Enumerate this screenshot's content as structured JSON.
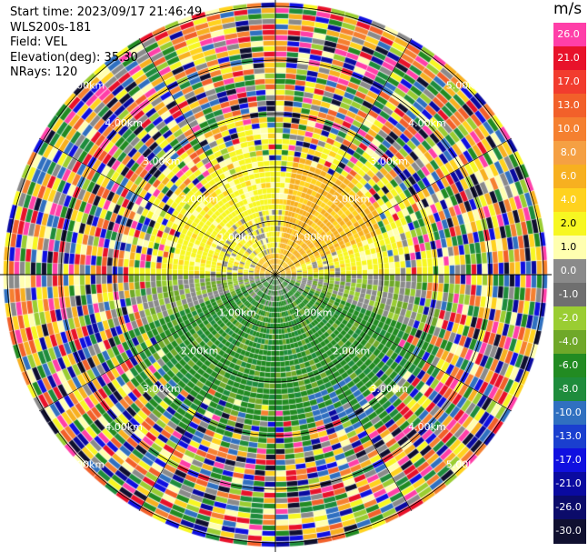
{
  "info": {
    "start_time": "Start time: 2023/09/17 21:46:49",
    "station": "WLS200s-181",
    "field": "Field: VEL",
    "elevation": "Elevation(deg): 35.30",
    "nrays": "NRays: 120"
  },
  "colorbar": {
    "unit": "m/s",
    "labels": [
      "26.0",
      "21.0",
      "17.0",
      "13.0",
      "10.0",
      "8.0",
      "6.0",
      "4.0",
      "2.0",
      "1.0",
      "0.0",
      "-1.0",
      "-2.0",
      "-4.0",
      "-6.0",
      "-8.0",
      "-10.0",
      "-13.0",
      "-17.0",
      "-21.0",
      "-26.0",
      "-30.0"
    ],
    "colors": [
      "#ff3fa8",
      "#e8122a",
      "#f23c2e",
      "#f2602a",
      "#f58030",
      "#f5a043",
      "#f7b020",
      "#ffd21e",
      "#f7f722",
      "#ffffb0",
      "#8a8a8a",
      "#6f6f6f",
      "#9acd32",
      "#6fa829",
      "#228b22",
      "#1e8c3c",
      "#3070c0",
      "#1a3fcf",
      "#1010e0",
      "#0a0aa0",
      "#0b0b6a",
      "#101030"
    ]
  },
  "ranges": {
    "labels": [
      "1.00km",
      "2.00km",
      "3.00km",
      "4.00km",
      "5.00km",
      "1.00km",
      "2.00km",
      "3.00km",
      "4.00km",
      "5.00km",
      "1.00km",
      "2.00km",
      "3.00km",
      "4.00km",
      "5.00km",
      "1.00km",
      "2.00km",
      "3.00km",
      "4.00km",
      "5.00km"
    ]
  }
}
